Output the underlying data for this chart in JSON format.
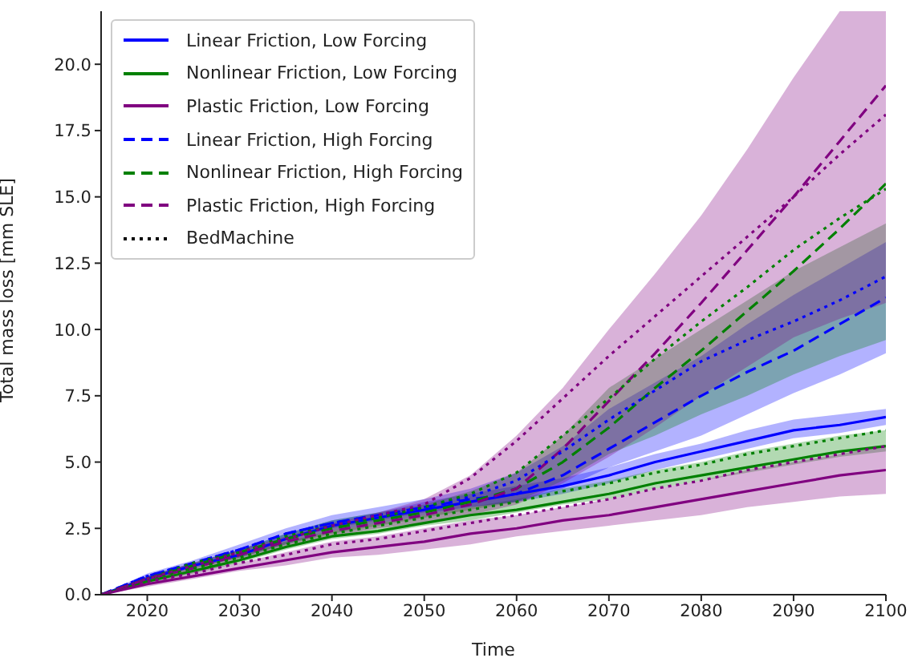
{
  "chart_data": {
    "type": "line",
    "xlabel": "Time",
    "ylabel": "Total mass loss [mm SLE]",
    "x": [
      2015,
      2020,
      2025,
      2030,
      2035,
      2040,
      2045,
      2050,
      2055,
      2060,
      2065,
      2070,
      2075,
      2080,
      2085,
      2090,
      2095,
      2100
    ],
    "xlim": [
      2015,
      2100
    ],
    "xticks": [
      2020,
      2030,
      2040,
      2050,
      2060,
      2070,
      2080,
      2090,
      2100
    ],
    "ylim": [
      0,
      22
    ],
    "yticks": [
      {
        "value": 0,
        "label": "0.0"
      },
      {
        "value": 2.5,
        "label": "2.5"
      },
      {
        "value": 5,
        "label": "5.0"
      },
      {
        "value": 7.5,
        "label": "7.5"
      },
      {
        "value": 10,
        "label": "10.0"
      },
      {
        "value": 12.5,
        "label": "12.5"
      },
      {
        "value": 15,
        "label": "15.0"
      },
      {
        "value": 17.5,
        "label": "17.5"
      },
      {
        "value": 20,
        "label": "20.0"
      }
    ],
    "grid": false,
    "legend": "top left",
    "marker": "none",
    "series": [
      {
        "name": "Linear Friction, Low Forcing",
        "color": "#0000ff",
        "line_style": "solid",
        "values": [
          0,
          0.6,
          1.1,
          1.5,
          2.1,
          2.6,
          2.9,
          3.2,
          3.5,
          3.8,
          4.1,
          4.5,
          5.0,
          5.4,
          5.8,
          6.2,
          6.4,
          6.7
        ],
        "lower": [
          0,
          0.5,
          1.0,
          1.4,
          1.9,
          2.4,
          2.7,
          3.0,
          3.3,
          3.5,
          3.8,
          4.2,
          4.7,
          5.1,
          5.5,
          5.9,
          6.1,
          6.4
        ],
        "upper": [
          0,
          0.7,
          1.2,
          1.7,
          2.3,
          2.8,
          3.1,
          3.5,
          3.8,
          4.1,
          4.4,
          4.8,
          5.3,
          5.7,
          6.2,
          6.6,
          6.8,
          7.0
        ]
      },
      {
        "name": "Nonlinear Friction, Low Forcing",
        "color": "#008000",
        "line_style": "solid",
        "values": [
          0,
          0.5,
          0.9,
          1.3,
          1.8,
          2.2,
          2.4,
          2.7,
          3.0,
          3.2,
          3.5,
          3.8,
          4.2,
          4.5,
          4.8,
          5.1,
          5.4,
          5.6
        ],
        "lower": [
          0,
          0.4,
          0.8,
          1.2,
          1.7,
          2.1,
          2.3,
          2.6,
          2.8,
          3.1,
          3.4,
          3.6,
          4.0,
          4.3,
          4.6,
          4.9,
          5.2,
          5.4
        ],
        "upper": [
          0,
          0.6,
          1.0,
          1.5,
          2.0,
          2.4,
          2.7,
          3.0,
          3.3,
          3.6,
          4.0,
          4.3,
          4.7,
          5.0,
          5.4,
          5.7,
          6.0,
          6.2
        ]
      },
      {
        "name": "Plastic Friction, Low Forcing",
        "color": "#800080",
        "line_style": "solid",
        "values": [
          0,
          0.4,
          0.7,
          1.0,
          1.3,
          1.6,
          1.8,
          2.0,
          2.3,
          2.5,
          2.8,
          3.0,
          3.3,
          3.6,
          3.9,
          4.2,
          4.5,
          4.7
        ],
        "lower": [
          0,
          0.3,
          0.6,
          0.9,
          1.1,
          1.4,
          1.5,
          1.7,
          1.9,
          2.2,
          2.4,
          2.6,
          2.8,
          3.0,
          3.3,
          3.5,
          3.7,
          3.8
        ],
        "upper": [
          0,
          0.5,
          0.9,
          1.2,
          1.6,
          2.0,
          2.2,
          2.5,
          2.8,
          3.0,
          3.3,
          3.6,
          4.0,
          4.3,
          4.7,
          5.0,
          5.3,
          5.6
        ]
      },
      {
        "name": "Linear Friction, High Forcing",
        "color": "#0000ff",
        "line_style": "dashed",
        "values": [
          0,
          0.7,
          1.2,
          1.7,
          2.3,
          2.7,
          3.0,
          3.3,
          3.6,
          3.8,
          4.5,
          5.5,
          6.5,
          7.5,
          8.4,
          9.2,
          10.2,
          11.2
        ],
        "lower": [
          0,
          0.6,
          1.1,
          1.6,
          2.1,
          2.5,
          2.8,
          3.1,
          3.3,
          3.5,
          4.0,
          4.8,
          5.4,
          6.0,
          6.8,
          7.6,
          8.3,
          9.1
        ],
        "upper": [
          0,
          0.8,
          1.3,
          1.9,
          2.5,
          3.0,
          3.3,
          3.6,
          4.0,
          4.6,
          5.6,
          7.0,
          8.0,
          9.0,
          10.2,
          11.3,
          12.3,
          13.3
        ]
      },
      {
        "name": "Nonlinear Friction, High Forcing",
        "color": "#008000",
        "line_style": "dashed",
        "values": [
          0,
          0.6,
          1.1,
          1.6,
          2.1,
          2.5,
          2.8,
          3.1,
          3.5,
          4.0,
          5.0,
          6.3,
          7.8,
          9.2,
          10.7,
          12.2,
          13.8,
          15.5
        ],
        "lower": [
          0,
          0.5,
          1.0,
          1.4,
          1.9,
          2.3,
          2.6,
          2.9,
          3.2,
          3.5,
          4.3,
          5.3,
          6.0,
          6.8,
          7.5,
          8.3,
          9.0,
          9.6
        ],
        "upper": [
          0,
          0.7,
          1.2,
          1.7,
          2.3,
          2.8,
          3.1,
          3.4,
          3.9,
          4.6,
          6.0,
          7.8,
          8.9,
          10.0,
          11.1,
          12.2,
          13.1,
          14.0
        ]
      },
      {
        "name": "Plastic Friction, High Forcing",
        "color": "#800080",
        "line_style": "dashed",
        "values": [
          0,
          0.6,
          1.0,
          1.5,
          2.0,
          2.4,
          2.7,
          3.0,
          3.4,
          4.0,
          5.5,
          7.3,
          9.1,
          11.0,
          13.0,
          15.0,
          17.1,
          19.2
        ],
        "lower": [
          0,
          0.5,
          0.9,
          1.3,
          1.8,
          2.2,
          2.5,
          2.7,
          3.0,
          3.4,
          4.2,
          5.2,
          6.3,
          7.5,
          8.6,
          9.7,
          10.4,
          11.0
        ],
        "upper": [
          0,
          0.7,
          1.2,
          1.7,
          2.2,
          2.7,
          3.1,
          3.6,
          4.5,
          6.0,
          7.8,
          10.0,
          12.1,
          14.3,
          16.8,
          19.5,
          22,
          22
        ]
      },
      {
        "name": "BedMachine",
        "color": "#000000",
        "line_style": "dotted",
        "values": [
          null,
          null,
          null,
          null,
          null,
          null,
          null,
          null,
          null,
          null,
          null,
          null,
          null,
          null,
          null,
          null,
          null,
          null
        ]
      },
      {
        "color": "#008000",
        "line_style": "dotted",
        "values": [
          0,
          0.6,
          1.0,
          1.4,
          1.9,
          2.3,
          2.6,
          2.9,
          3.2,
          3.5,
          3.9,
          4.2,
          4.6,
          4.9,
          5.3,
          5.6,
          5.9,
          6.2
        ]
      },
      {
        "color": "#800080",
        "line_style": "dotted",
        "values": [
          0,
          0.5,
          0.8,
          1.2,
          1.5,
          1.9,
          2.1,
          2.4,
          2.7,
          3.0,
          3.3,
          3.6,
          4.0,
          4.3,
          4.7,
          5.0,
          5.3,
          5.6
        ]
      },
      {
        "color": "#0000ff",
        "line_style": "dotted",
        "values": [
          0,
          0.7,
          1.2,
          1.7,
          2.3,
          2.7,
          3.0,
          3.3,
          3.7,
          4.3,
          5.4,
          6.6,
          7.7,
          8.8,
          9.6,
          10.3,
          11.1,
          12.0
        ]
      },
      {
        "color": "#008000",
        "line_style": "dotted",
        "values": [
          0,
          0.6,
          1.2,
          1.6,
          2.2,
          2.6,
          2.9,
          3.3,
          3.8,
          4.6,
          6.0,
          7.4,
          8.9,
          10.3,
          11.6,
          13.0,
          14.2,
          15.3
        ]
      },
      {
        "color": "#800080",
        "line_style": "dotted",
        "values": [
          0,
          0.6,
          1.1,
          1.6,
          2.1,
          2.6,
          3.0,
          3.4,
          4.4,
          5.8,
          7.4,
          9.0,
          10.5,
          12.0,
          13.5,
          15.0,
          16.6,
          18.1
        ]
      }
    ]
  }
}
